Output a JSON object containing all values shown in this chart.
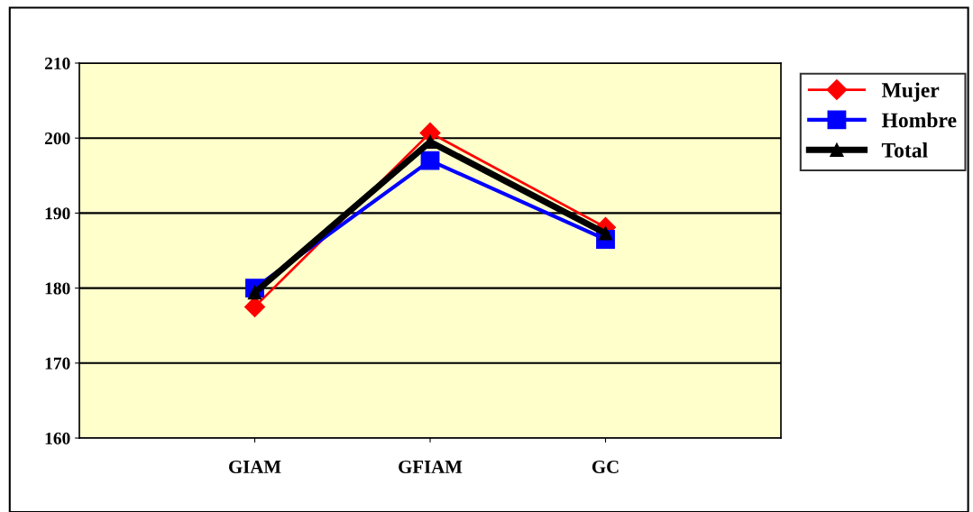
{
  "chart_data": {
    "type": "line",
    "categories": [
      "GIAM",
      "GFIAM",
      "GC"
    ],
    "series": [
      {
        "name": "Mujer",
        "color": "#ff0000",
        "marker": "diamond",
        "values": [
          177.5,
          200.7,
          188.1
        ]
      },
      {
        "name": "Hombre",
        "color": "#0000ff",
        "marker": "square",
        "values": [
          180.0,
          197.0,
          186.5
        ]
      },
      {
        "name": "Total",
        "color": "#000000",
        "marker": "triangle",
        "values": [
          179.4,
          199.5,
          187.3
        ]
      }
    ],
    "ylim": [
      160,
      210
    ],
    "yticks": [
      160,
      170,
      180,
      190,
      200,
      210
    ],
    "grid": "y",
    "legend": "right"
  }
}
